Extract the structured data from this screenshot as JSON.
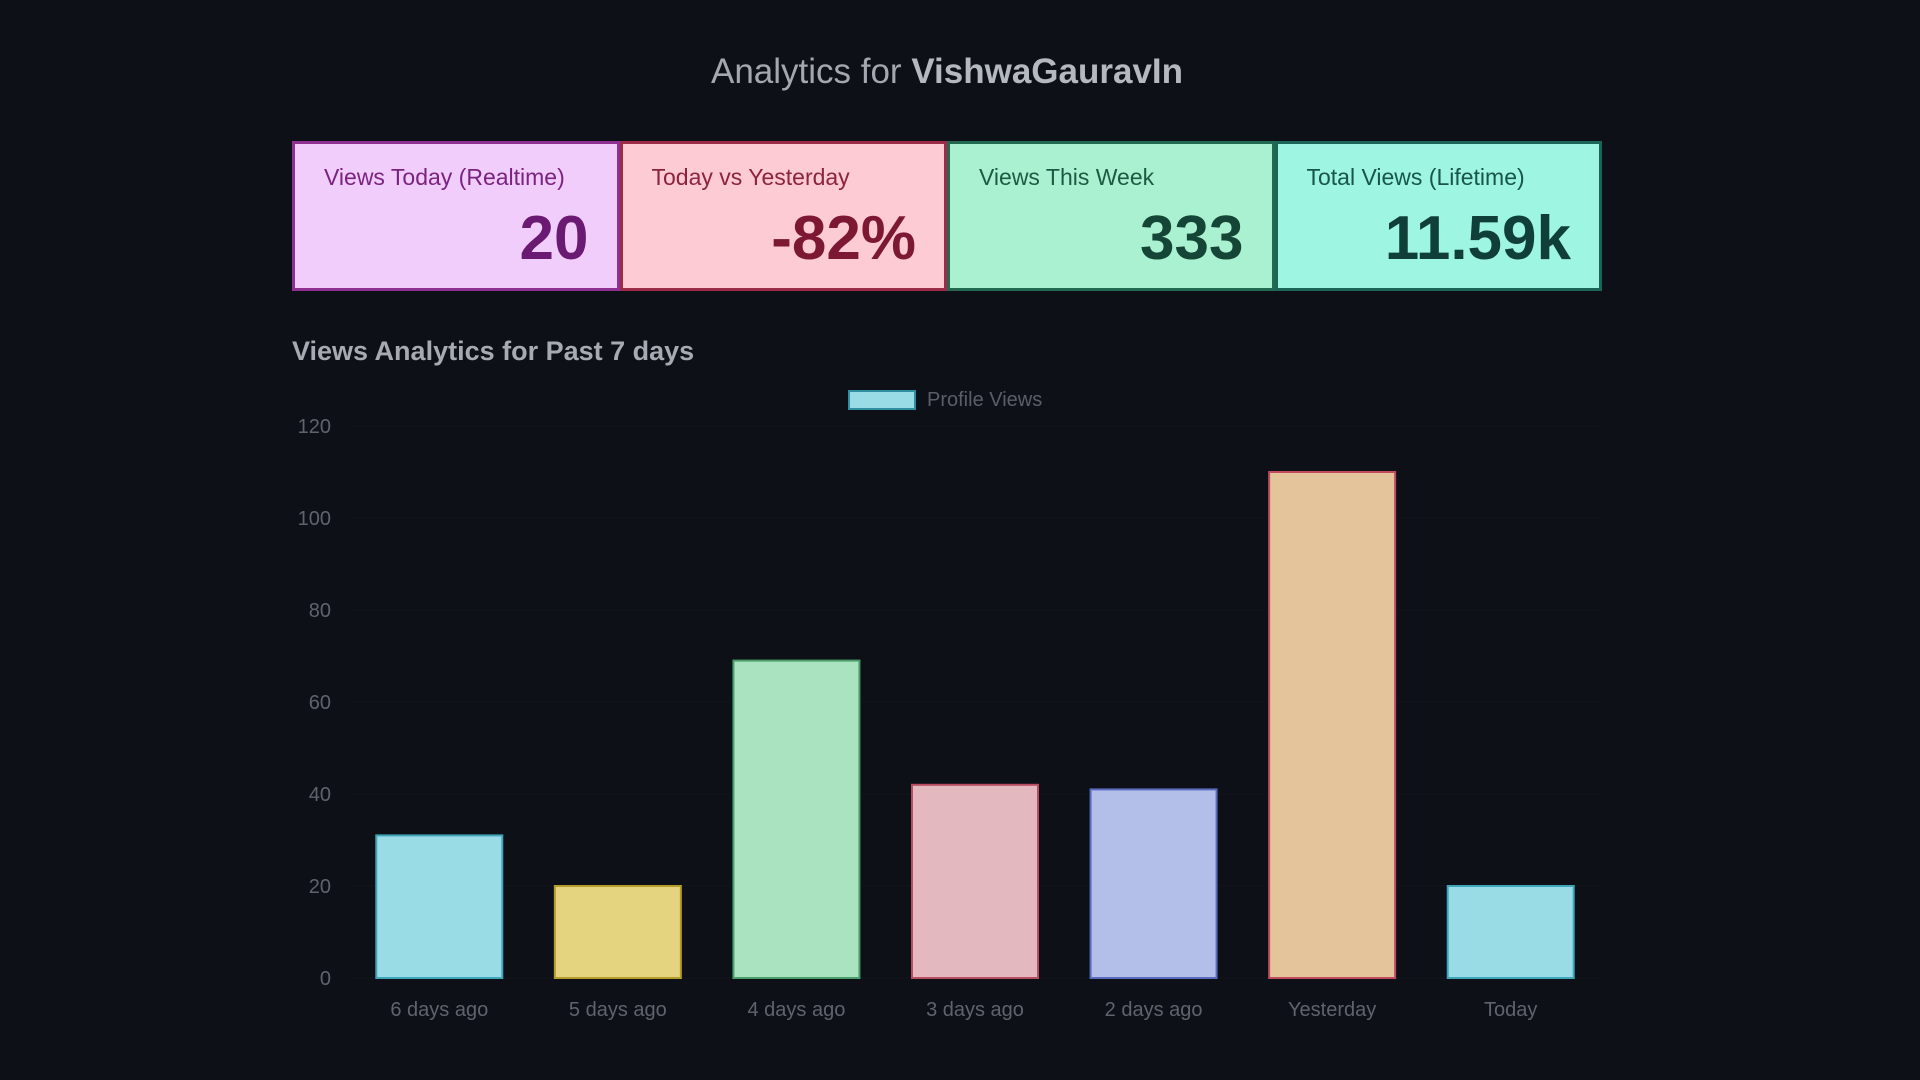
{
  "header": {
    "title_prefix": "Analytics for",
    "username": "VishwaGauravIn"
  },
  "cards": [
    {
      "label": "Views Today (Realtime)",
      "value": "20",
      "bg": "#f1cdfb",
      "border": "#8e2f92",
      "text": "#7a237f",
      "value_color": "#6b1a73"
    },
    {
      "label": "Today vs Yesterday",
      "value": "-82%",
      "bg": "#fdcbd3",
      "border": "#9e2a4a",
      "text": "#8c2340",
      "value_color": "#7c1834"
    },
    {
      "label": "Views This Week",
      "value": "333",
      "bg": "#aaf1d1",
      "border": "#21694f",
      "text": "#1d5a43",
      "value_color": "#144536"
    },
    {
      "label": "Total Views (Lifetime)",
      "value": "11.59k",
      "bg": "#9ef5e2",
      "border": "#1c6457",
      "text": "#18554a",
      "value_color": "#103f37"
    }
  ],
  "section": {
    "title": "Views Analytics for Past 7 days"
  },
  "chart_data": {
    "type": "bar",
    "title": "Views Analytics for Past 7 days",
    "categories": [
      "6 days ago",
      "5 days ago",
      "4 days ago",
      "3 days ago",
      "2 days ago",
      "Yesterday",
      "Today"
    ],
    "series": [
      {
        "name": "Profile Views",
        "values": [
          31,
          20,
          69,
          42,
          41,
          110,
          20
        ]
      }
    ],
    "bar_colors": [
      "#99dce6",
      "#e4d37f",
      "#aae3c0",
      "#e3b8bf",
      "#b3bfe9",
      "#e4c59b",
      "#99dce6"
    ],
    "bar_borders": [
      "#3fa6b8",
      "#b59a2c",
      "#4b9e6c",
      "#b84c61",
      "#5a6bbf",
      "#c04a5f",
      "#3fa6b8"
    ],
    "legend_color": "#99dce6",
    "legend_position": "top-center",
    "yticks": [
      0,
      20,
      40,
      60,
      80,
      100,
      120
    ],
    "ylim": [
      0,
      120
    ],
    "xlabel": "",
    "ylabel": ""
  }
}
